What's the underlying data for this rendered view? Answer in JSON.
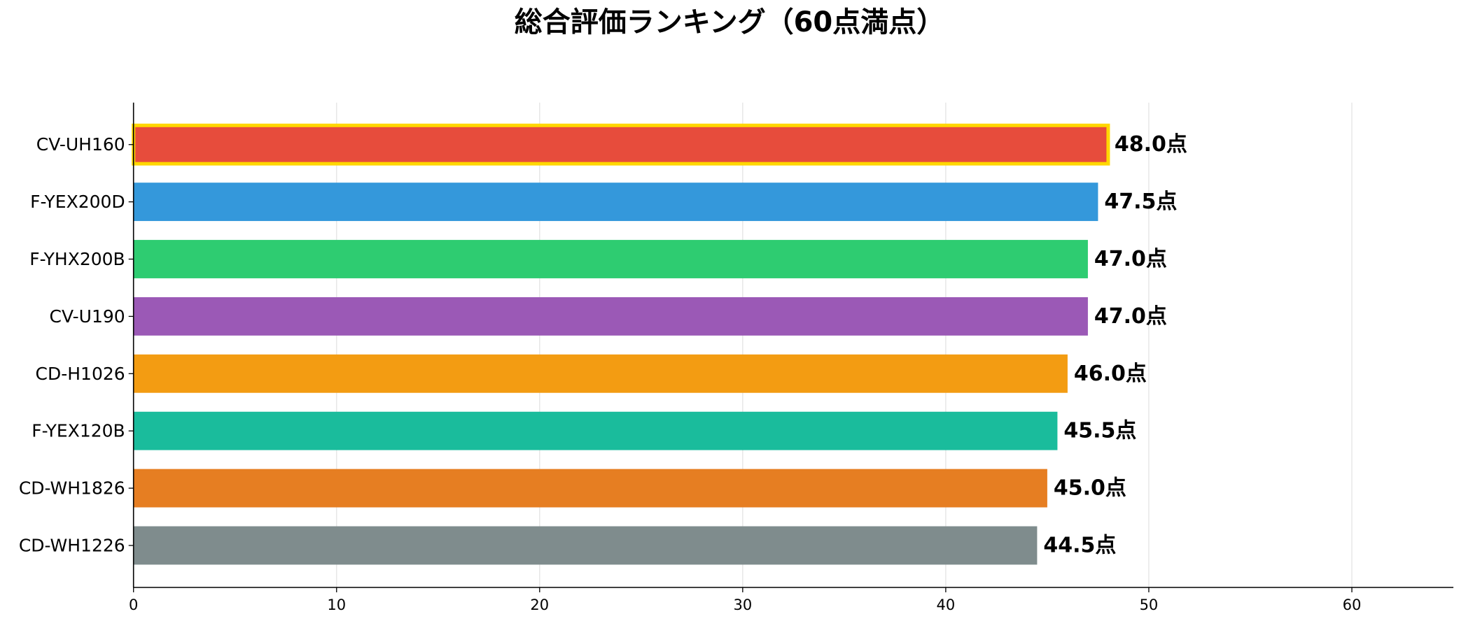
{
  "chart_data": {
    "type": "bar",
    "orientation": "horizontal",
    "title": "総合評価ランキング（60点満点）",
    "xlabel": "",
    "ylabel": "",
    "categories": [
      "CV-UH160",
      "F-YEX200D",
      "F-YHX200B",
      "CV-U190",
      "CD-H1026",
      "F-YEX120B",
      "CD-WH1826",
      "CD-WH1226"
    ],
    "values": [
      48.0,
      47.5,
      47.0,
      47.0,
      46.0,
      45.5,
      45.0,
      44.5
    ],
    "value_labels": [
      "48.0点",
      "47.5点",
      "47.0点",
      "47.0点",
      "46.0点",
      "45.5点",
      "45.0点",
      "44.5点"
    ],
    "colors": [
      "#e74c3c",
      "#3498db",
      "#2ecc71",
      "#9b59b6",
      "#f39c12",
      "#1abc9c",
      "#e67e22",
      "#7f8c8d"
    ],
    "highlight": {
      "index": 0,
      "border_color": "#ffd700"
    },
    "xlim": [
      0,
      65
    ],
    "xticks": [
      0,
      10,
      20,
      30,
      40,
      50,
      60
    ],
    "grid": true
  }
}
